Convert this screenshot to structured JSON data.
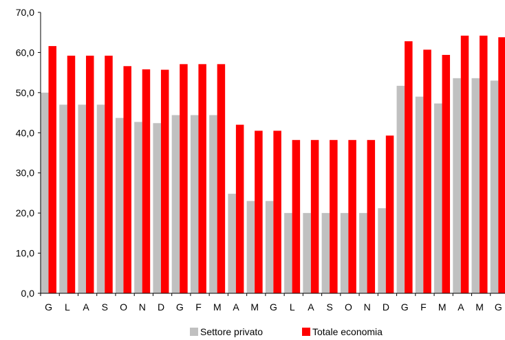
{
  "chart_data": {
    "type": "bar",
    "title": "",
    "xlabel": "",
    "ylabel": "",
    "ylim": [
      0,
      70
    ],
    "yticks": [
      "0,0",
      "10,0",
      "20,0",
      "30,0",
      "40,0",
      "50,0",
      "60,0",
      "70,0"
    ],
    "categories": [
      "G",
      "L",
      "A",
      "S",
      "O",
      "N",
      "D",
      "G",
      "F",
      "M",
      "A",
      "M",
      "G",
      "L",
      "A",
      "S",
      "O",
      "N",
      "D",
      "G",
      "F",
      "M",
      "A",
      "M",
      "G"
    ],
    "series": [
      {
        "name": "Settore privato",
        "color": "#c0c0c0",
        "values": [
          50.0,
          47.0,
          47.0,
          47.0,
          43.7,
          42.7,
          42.4,
          44.4,
          44.4,
          44.4,
          24.8,
          23.0,
          23.0,
          20.0,
          20.0,
          20.0,
          20.0,
          20.0,
          21.2,
          51.7,
          49.0,
          47.3,
          53.6,
          53.6,
          53.0
        ]
      },
      {
        "name": "Totale economia",
        "color": "#ff0000",
        "values": [
          61.6,
          59.2,
          59.2,
          59.2,
          56.6,
          55.8,
          55.7,
          57.1,
          57.1,
          57.1,
          42.0,
          40.5,
          40.5,
          38.2,
          38.2,
          38.2,
          38.2,
          38.2,
          39.3,
          62.8,
          60.7,
          59.4,
          64.2,
          64.2,
          63.8
        ]
      }
    ],
    "legend_position": "bottom",
    "grid": false
  }
}
